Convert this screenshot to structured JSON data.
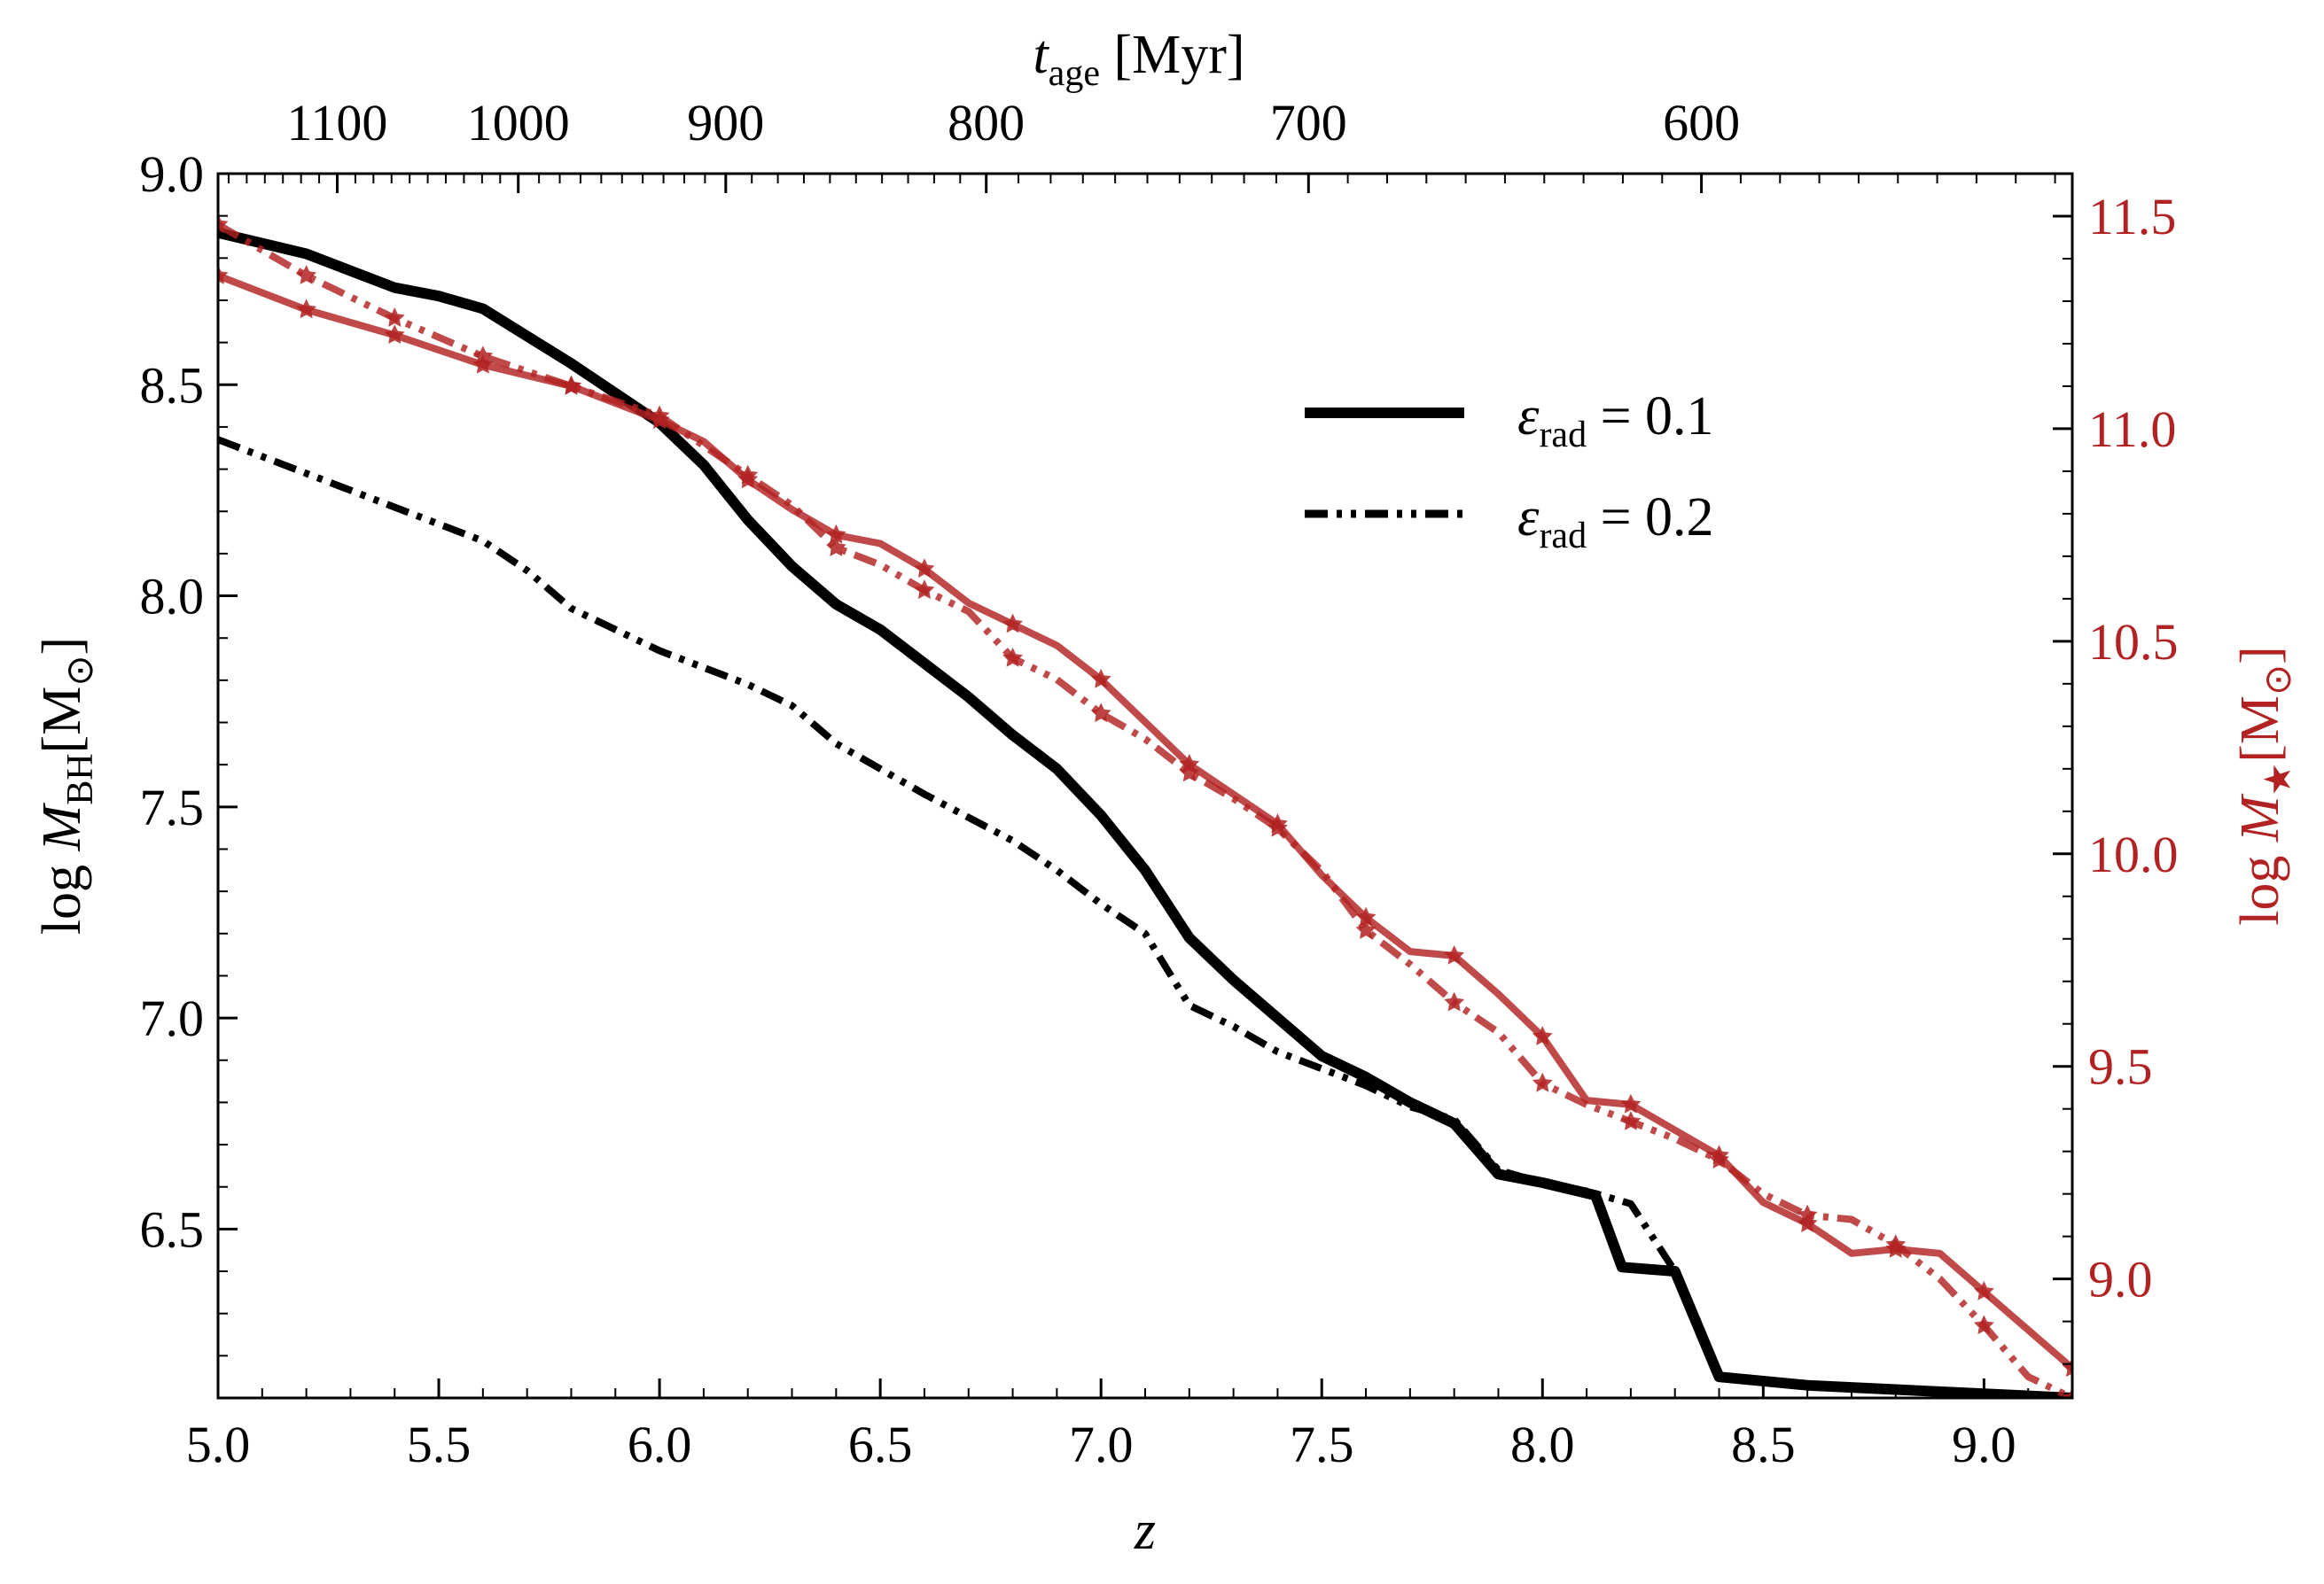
{
  "chart_data": {
    "type": "line",
    "xlabel": "z",
    "ylabel": "log M_BH [M_sun]",
    "y2label": "log M_star [M_sun]",
    "top_xlabel": "t_age [Myr]",
    "xlim": [
      5.0,
      9.2
    ],
    "ylim": [
      6.1,
      9.0
    ],
    "y2lim": [
      8.72,
      11.6
    ],
    "x_ticks": [
      "5.0",
      "5.5",
      "6.0",
      "6.5",
      "7.0",
      "7.5",
      "8.0",
      "8.5",
      "9.0"
    ],
    "y_ticks": [
      "6.5",
      "7.0",
      "7.5",
      "8.0",
      "8.5",
      "9.0"
    ],
    "y2_ticks": [
      "9.0",
      "9.5",
      "10.0",
      "10.5",
      "11.0",
      "11.5"
    ],
    "top_ticks": [
      {
        "label": "1100",
        "z": 5.27
      },
      {
        "label": "1000",
        "z": 5.68
      },
      {
        "label": "900",
        "z": 6.15
      },
      {
        "label": "800",
        "z": 6.74
      },
      {
        "label": "700",
        "z": 7.47
      },
      {
        "label": "600",
        "z": 8.36
      }
    ],
    "legend": [
      {
        "label": "ε_rad = 0.1",
        "style": "solid"
      },
      {
        "label": "ε_rad = 0.2",
        "style": "dashdotdot"
      }
    ],
    "colors": {
      "bh": "#000000",
      "stellar": "#b22222"
    },
    "series": [
      {
        "name": "BH mass, ε_rad = 0.1",
        "axis": "left",
        "style": "solid",
        "x": [
          5.0,
          5.2,
          5.3,
          5.4,
          5.5,
          5.6,
          5.8,
          6.0,
          6.1,
          6.2,
          6.3,
          6.4,
          6.5,
          6.6,
          6.7,
          6.8,
          6.9,
          7.0,
          7.1,
          7.2,
          7.3,
          7.4,
          7.5,
          7.6,
          7.7,
          7.8,
          7.9,
          8.0,
          8.12,
          8.18,
          8.3,
          8.4,
          8.6,
          8.8,
          9.0,
          9.2
        ],
        "y": [
          8.86,
          8.81,
          8.77,
          8.73,
          8.71,
          8.68,
          8.55,
          8.41,
          8.31,
          8.18,
          8.07,
          7.98,
          7.92,
          7.84,
          7.76,
          7.67,
          7.59,
          7.48,
          7.35,
          7.19,
          7.09,
          7.0,
          6.91,
          6.86,
          6.8,
          6.75,
          6.63,
          6.61,
          6.58,
          6.41,
          6.4,
          6.15,
          6.13,
          6.12,
          6.11,
          6.1
        ]
      },
      {
        "name": "BH mass, ε_rad = 0.2",
        "axis": "left",
        "style": "dashdotdot",
        "x": [
          5.0,
          5.2,
          5.4,
          5.6,
          5.7,
          5.8,
          6.0,
          6.2,
          6.3,
          6.4,
          6.6,
          6.8,
          6.9,
          7.0,
          7.1,
          7.2,
          7.3,
          7.4,
          7.5,
          7.6,
          7.7,
          7.8,
          7.9,
          8.0,
          8.1,
          8.2,
          8.3,
          8.4,
          8.6,
          8.8,
          9.0,
          9.2
        ],
        "y": [
          8.37,
          8.29,
          8.21,
          8.13,
          8.06,
          7.97,
          7.87,
          7.79,
          7.74,
          7.65,
          7.53,
          7.42,
          7.35,
          7.27,
          7.2,
          7.03,
          6.98,
          6.92,
          6.88,
          6.84,
          6.79,
          6.76,
          6.64,
          6.61,
          6.59,
          6.56,
          6.4,
          6.15,
          6.13,
          6.12,
          6.11,
          6.1
        ]
      },
      {
        "name": "Stellar mass, ε_rad = 0.1",
        "axis": "right",
        "style": "solid",
        "x": [
          5.0,
          5.2,
          5.4,
          5.6,
          5.8,
          6.0,
          6.1,
          6.2,
          6.3,
          6.4,
          6.5,
          6.6,
          6.7,
          6.8,
          6.9,
          7.0,
          7.1,
          7.2,
          7.3,
          7.4,
          7.5,
          7.6,
          7.7,
          7.8,
          7.9,
          8.0,
          8.1,
          8.2,
          8.3,
          8.4,
          8.5,
          8.6,
          8.7,
          8.8,
          8.9,
          9.0,
          9.1,
          9.2
        ],
        "y": [
          11.36,
          11.28,
          11.22,
          11.15,
          11.1,
          11.02,
          10.97,
          10.88,
          10.81,
          10.75,
          10.73,
          10.67,
          10.59,
          10.54,
          10.49,
          10.41,
          10.31,
          10.21,
          10.14,
          10.07,
          9.95,
          9.85,
          9.77,
          9.76,
          9.67,
          9.57,
          9.42,
          9.41,
          9.35,
          9.29,
          9.18,
          9.13,
          9.06,
          9.07,
          9.06,
          8.97,
          8.88,
          8.79
        ]
      },
      {
        "name": "Stellar mass, ε_rad = 0.2",
        "axis": "right",
        "style": "dashdotdot",
        "x": [
          5.0,
          5.2,
          5.4,
          5.6,
          5.8,
          6.0,
          6.1,
          6.2,
          6.3,
          6.4,
          6.5,
          6.6,
          6.7,
          6.8,
          6.9,
          7.0,
          7.1,
          7.2,
          7.3,
          7.4,
          7.5,
          7.6,
          7.7,
          7.8,
          7.9,
          8.0,
          8.1,
          8.2,
          8.3,
          8.4,
          8.5,
          8.6,
          8.7,
          8.8,
          8.9,
          9.0,
          9.1,
          9.2
        ],
        "y": [
          11.48,
          11.36,
          11.26,
          11.17,
          11.1,
          11.03,
          10.96,
          10.89,
          10.82,
          10.72,
          10.68,
          10.62,
          10.57,
          10.46,
          10.41,
          10.33,
          10.27,
          10.19,
          10.13,
          10.06,
          9.96,
          9.82,
          9.74,
          9.65,
          9.58,
          9.46,
          9.41,
          9.37,
          9.33,
          9.28,
          9.2,
          9.15,
          9.14,
          9.08,
          9.0,
          8.89,
          8.77,
          8.72
        ]
      }
    ]
  }
}
